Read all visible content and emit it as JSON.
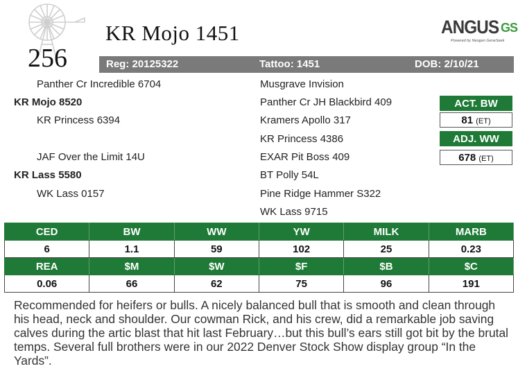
{
  "lot_number": "256",
  "bull_name": "KR Mojo 1451",
  "logo": {
    "brand": "ANGUS",
    "suffix": "GS",
    "tagline": "Powered by Neogen GeneSeek"
  },
  "info": {
    "reg": "Reg: 20125322",
    "tattoo": "Tattoo: 1451",
    "dob": "DOB: 2/10/21"
  },
  "pedigree": {
    "left": [
      {
        "text": "Panther Cr Incredible 6704",
        "bold": false
      },
      {
        "text": "KR Mojo 8520",
        "bold": true
      },
      {
        "text": "KR Princess 6394",
        "bold": false
      },
      {
        "text": "JAF Over the Limit 14U",
        "bold": false
      },
      {
        "text": "KR Lass 5580",
        "bold": true
      },
      {
        "text": "WK Lass 0157",
        "bold": false
      }
    ],
    "right": [
      "Musgrave Invision",
      "Panther Cr JH Blackbird 409",
      "Kramers Apollo 317",
      "KR Princess 4386",
      "EXAR Pit Boss 409",
      "BT Polly 54L",
      "Pine Ridge Hammer S322",
      "WK Lass 9715"
    ]
  },
  "weights": {
    "act_bw_label": "ACT. BW",
    "act_bw_value": "81",
    "act_bw_note": "(ET)",
    "adj_ww_label": "ADJ. WW",
    "adj_ww_value": "678",
    "adj_ww_note": "(ET)"
  },
  "epd": {
    "row1_headers": [
      "CED",
      "BW",
      "WW",
      "YW",
      "MILK",
      "MARB"
    ],
    "row1_values": [
      "6",
      "1.1",
      "59",
      "102",
      "25",
      "0.23"
    ],
    "row2_headers": [
      "REA",
      "$M",
      "$W",
      "$F",
      "$B",
      "$C"
    ],
    "row2_values": [
      "0.06",
      "66",
      "62",
      "75",
      "96",
      "191"
    ]
  },
  "description": "Recommended for heifers or bulls. A nicely balanced bull that is smooth and clean through his head, neck and shoulder.  Our cowman Rick, and his crew, did a remarkable job saving calves during the artic blast that hit last February…but this bull’s ears still got bit by the brutal temps.  Several full brothers were in our 2022 Denver Stock Show display group “In the Yards”.",
  "colors": {
    "green": "#1e7a36",
    "gray_bar": "#7a7a7a"
  },
  "icons": [
    "windmill-icon"
  ]
}
